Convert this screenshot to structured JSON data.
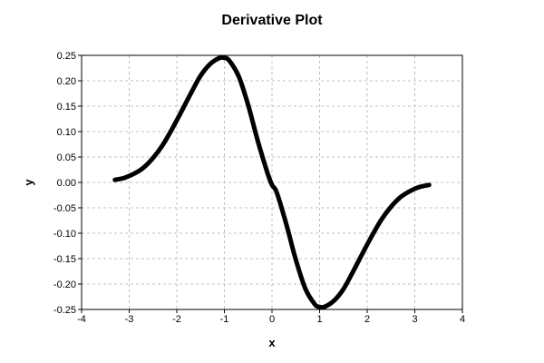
{
  "chart_data": {
    "type": "line",
    "title": "Derivative Plot",
    "xlabel": "x",
    "ylabel": "y",
    "xlim": [
      -4,
      4
    ],
    "ylim": [
      -0.25,
      0.25
    ],
    "x_ticks": [
      -4,
      -3,
      -2,
      -1,
      0,
      1,
      2,
      3,
      4
    ],
    "x_tick_labels": [
      "-4",
      "-3",
      "-2",
      "-1",
      "0",
      "1",
      "2",
      "3",
      "4"
    ],
    "y_ticks": [
      0.25,
      0.2,
      0.15,
      0.1,
      0.05,
      0.0,
      -0.05,
      -0.1,
      -0.15,
      -0.2,
      -0.25
    ],
    "y_tick_labels": [
      "0.25",
      "0.20",
      "0.15",
      "0.10",
      "0.05",
      "0.00",
      "-0.05",
      "-0.10",
      "-0.15",
      "-0.20",
      "-0.25"
    ],
    "grid": true,
    "series": [
      {
        "color": "#000000",
        "x": [
          -3.3,
          -3.1,
          -2.9,
          -2.7,
          -2.5,
          -2.3,
          -2.1,
          -1.9,
          -1.7,
          -1.5,
          -1.3,
          -1.1,
          -1.0,
          -0.9,
          -0.7,
          -0.5,
          -0.3,
          -0.1,
          0.0,
          0.1,
          0.3,
          0.5,
          0.7,
          0.9,
          1.0,
          1.1,
          1.3,
          1.5,
          1.7,
          1.9,
          2.1,
          2.3,
          2.5,
          2.7,
          2.9,
          3.1,
          3.3
        ],
        "y": [
          0.005,
          0.009,
          0.017,
          0.029,
          0.048,
          0.073,
          0.105,
          0.14,
          0.176,
          0.21,
          0.233,
          0.245,
          0.245,
          0.24,
          0.209,
          0.152,
          0.082,
          0.02,
          -0.005,
          -0.02,
          -0.082,
          -0.152,
          -0.209,
          -0.24,
          -0.245,
          -0.245,
          -0.233,
          -0.21,
          -0.176,
          -0.14,
          -0.105,
          -0.073,
          -0.048,
          -0.029,
          -0.017,
          -0.009,
          -0.005
        ]
      }
    ]
  }
}
